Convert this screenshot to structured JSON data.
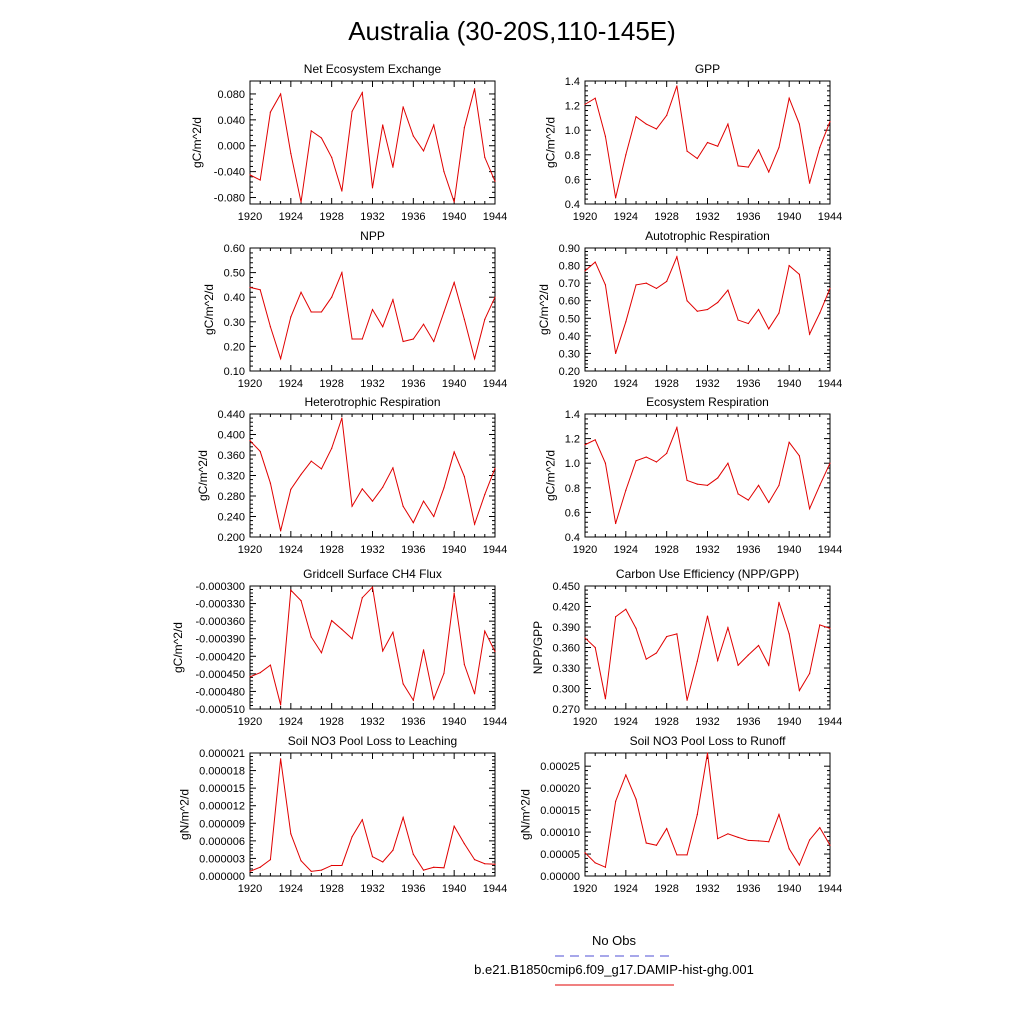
{
  "figure": {
    "title": "Australia (30-20S,110-145E)"
  },
  "legend": {
    "entries": [
      {
        "label": "No Obs",
        "color": "#4f4fd6",
        "style": "dashed"
      },
      {
        "label": "b.e21.B1850cmip6.f09_g17.DAMIP-hist-ghg.001",
        "color": "#e00000",
        "style": "solid"
      }
    ]
  },
  "colors": {
    "series": "#e00000",
    "axis": "#000000"
  },
  "chart_data": [
    {
      "id": "nee",
      "type": "line",
      "title": "Net Ecosystem Exchange",
      "ylabel": "gC/m^2/d",
      "xlim": [
        1920,
        1944
      ],
      "ylim": [
        -0.09,
        0.1
      ],
      "xticks": [
        1920,
        1924,
        1928,
        1932,
        1936,
        1940,
        1944
      ],
      "yticks": [
        -0.08,
        -0.04,
        0.0,
        0.04,
        0.08
      ],
      "yticklabels": [
        "-0.080",
        "-0.040",
        "0.000",
        "0.040",
        "0.080"
      ],
      "x": [
        1920,
        1921,
        1922,
        1923,
        1924,
        1925,
        1926,
        1927,
        1928,
        1929,
        1930,
        1931,
        1932,
        1933,
        1934,
        1935,
        1936,
        1937,
        1938,
        1939,
        1940,
        1941,
        1942,
        1943,
        1944
      ],
      "series": [
        {
          "values": [
            -0.045,
            -0.053,
            0.052,
            0.08,
            -0.012,
            -0.087,
            0.023,
            0.012,
            -0.018,
            -0.07,
            0.053,
            0.082,
            -0.065,
            0.032,
            -0.033,
            0.06,
            0.015,
            -0.008,
            0.032,
            -0.04,
            -0.087,
            0.028,
            0.088,
            -0.018,
            -0.055
          ]
        }
      ]
    },
    {
      "id": "gpp",
      "type": "line",
      "title": "GPP",
      "ylabel": "gC/m^2/d",
      "xlim": [
        1920,
        1944
      ],
      "ylim": [
        0.4,
        1.4
      ],
      "xticks": [
        1920,
        1924,
        1928,
        1932,
        1936,
        1940,
        1944
      ],
      "yticks": [
        0.4,
        0.6,
        0.8,
        1.0,
        1.2,
        1.4
      ],
      "yticklabels": [
        "0.4",
        "0.6",
        "0.8",
        "1.0",
        "1.2",
        "1.4"
      ],
      "x": [
        1920,
        1921,
        1922,
        1923,
        1924,
        1925,
        1926,
        1927,
        1928,
        1929,
        1930,
        1931,
        1932,
        1933,
        1934,
        1935,
        1936,
        1937,
        1938,
        1939,
        1940,
        1941,
        1942,
        1943,
        1944
      ],
      "series": [
        {
          "values": [
            1.21,
            1.26,
            0.95,
            0.45,
            0.8,
            1.11,
            1.05,
            1.01,
            1.12,
            1.36,
            0.83,
            0.77,
            0.9,
            0.87,
            1.05,
            0.71,
            0.7,
            0.84,
            0.66,
            0.86,
            1.26,
            1.05,
            0.57,
            0.86,
            1.07
          ]
        }
      ]
    },
    {
      "id": "npp",
      "type": "line",
      "title": "NPP",
      "ylabel": "gC/m^2/d",
      "xlim": [
        1920,
        1944
      ],
      "ylim": [
        0.1,
        0.6
      ],
      "xticks": [
        1920,
        1924,
        1928,
        1932,
        1936,
        1940,
        1944
      ],
      "yticks": [
        0.1,
        0.2,
        0.3,
        0.4,
        0.5,
        0.6
      ],
      "yticklabels": [
        "0.10",
        "0.20",
        "0.30",
        "0.40",
        "0.50",
        "0.60"
      ],
      "x": [
        1920,
        1921,
        1922,
        1923,
        1924,
        1925,
        1926,
        1927,
        1928,
        1929,
        1930,
        1931,
        1932,
        1933,
        1934,
        1935,
        1936,
        1937,
        1938,
        1939,
        1940,
        1941,
        1942,
        1943,
        1944
      ],
      "series": [
        {
          "values": [
            0.44,
            0.43,
            0.28,
            0.15,
            0.32,
            0.42,
            0.34,
            0.34,
            0.4,
            0.5,
            0.23,
            0.23,
            0.35,
            0.28,
            0.39,
            0.22,
            0.23,
            0.29,
            0.22,
            0.34,
            0.46,
            0.31,
            0.15,
            0.31,
            0.4
          ]
        }
      ]
    },
    {
      "id": "ar",
      "type": "line",
      "title": "Autotrophic Respiration",
      "ylabel": "gC/m^2/d",
      "xlim": [
        1920,
        1944
      ],
      "ylim": [
        0.2,
        0.9
      ],
      "xticks": [
        1920,
        1924,
        1928,
        1932,
        1936,
        1940,
        1944
      ],
      "yticks": [
        0.2,
        0.3,
        0.4,
        0.5,
        0.6,
        0.7,
        0.8,
        0.9
      ],
      "yticklabels": [
        "0.20",
        "0.30",
        "0.40",
        "0.50",
        "0.60",
        "0.70",
        "0.80",
        "0.90"
      ],
      "x": [
        1920,
        1921,
        1922,
        1923,
        1924,
        1925,
        1926,
        1927,
        1928,
        1929,
        1930,
        1931,
        1932,
        1933,
        1934,
        1935,
        1936,
        1937,
        1938,
        1939,
        1940,
        1941,
        1942,
        1943,
        1944
      ],
      "series": [
        {
          "values": [
            0.77,
            0.82,
            0.69,
            0.3,
            0.48,
            0.69,
            0.7,
            0.67,
            0.71,
            0.85,
            0.6,
            0.54,
            0.55,
            0.59,
            0.66,
            0.49,
            0.47,
            0.55,
            0.44,
            0.53,
            0.8,
            0.75,
            0.41,
            0.53,
            0.67
          ]
        }
      ]
    },
    {
      "id": "hr",
      "type": "line",
      "title": "Heterotrophic Respiration",
      "ylabel": "gC/m^2/d",
      "xlim": [
        1920,
        1944
      ],
      "ylim": [
        0.2,
        0.44
      ],
      "xticks": [
        1920,
        1924,
        1928,
        1932,
        1936,
        1940,
        1944
      ],
      "yticks": [
        0.2,
        0.24,
        0.28,
        0.32,
        0.36,
        0.4,
        0.44
      ],
      "yticklabels": [
        "0.200",
        "0.240",
        "0.280",
        "0.320",
        "0.360",
        "0.400",
        "0.440"
      ],
      "x": [
        1920,
        1921,
        1922,
        1923,
        1924,
        1925,
        1926,
        1927,
        1928,
        1929,
        1930,
        1931,
        1932,
        1933,
        1934,
        1935,
        1936,
        1937,
        1938,
        1939,
        1940,
        1941,
        1942,
        1943,
        1944
      ],
      "series": [
        {
          "values": [
            0.388,
            0.367,
            0.305,
            0.212,
            0.293,
            0.322,
            0.348,
            0.333,
            0.373,
            0.432,
            0.26,
            0.294,
            0.27,
            0.297,
            0.335,
            0.26,
            0.228,
            0.27,
            0.24,
            0.296,
            0.366,
            0.318,
            0.225,
            0.283,
            0.334
          ]
        }
      ]
    },
    {
      "id": "er",
      "type": "line",
      "title": "Ecosystem Respiration",
      "ylabel": "gC/m^2/d",
      "xlim": [
        1920,
        1944
      ],
      "ylim": [
        0.4,
        1.4
      ],
      "xticks": [
        1920,
        1924,
        1928,
        1932,
        1936,
        1940,
        1944
      ],
      "yticks": [
        0.4,
        0.6,
        0.8,
        1.0,
        1.2,
        1.4
      ],
      "yticklabels": [
        "0.4",
        "0.6",
        "0.8",
        "1.0",
        "1.2",
        "1.4"
      ],
      "x": [
        1920,
        1921,
        1922,
        1923,
        1924,
        1925,
        1926,
        1927,
        1928,
        1929,
        1930,
        1931,
        1932,
        1933,
        1934,
        1935,
        1936,
        1937,
        1938,
        1939,
        1940,
        1941,
        1942,
        1943,
        1944
      ],
      "series": [
        {
          "values": [
            1.15,
            1.19,
            1.0,
            0.51,
            0.78,
            1.02,
            1.05,
            1.01,
            1.08,
            1.29,
            0.86,
            0.83,
            0.82,
            0.88,
            1.0,
            0.75,
            0.7,
            0.82,
            0.68,
            0.82,
            1.17,
            1.06,
            0.63,
            0.82,
            1.0
          ]
        }
      ]
    },
    {
      "id": "ch4",
      "type": "line",
      "title": "Gridcell Surface CH4 Flux",
      "ylabel": "gC/m^2/d",
      "xlim": [
        1920,
        1944
      ],
      "ylim": [
        -0.00051,
        -0.0003
      ],
      "xticks": [
        1920,
        1924,
        1928,
        1932,
        1936,
        1940,
        1944
      ],
      "yticks": [
        -0.00051,
        -0.00048,
        -0.00045,
        -0.00042,
        -0.00039,
        -0.00036,
        -0.00033,
        -0.0003
      ],
      "yticklabels": [
        "-0.000510",
        "-0.000480",
        "-0.000450",
        "-0.000420",
        "-0.000390",
        "-0.000360",
        "-0.000330",
        "-0.000300"
      ],
      "x": [
        1920,
        1921,
        1922,
        1923,
        1924,
        1925,
        1926,
        1927,
        1928,
        1929,
        1930,
        1931,
        1932,
        1933,
        1934,
        1935,
        1936,
        1937,
        1938,
        1939,
        1940,
        1941,
        1942,
        1943,
        1944
      ],
      "series": [
        {
          "values": [
            -0.000455,
            -0.000448,
            -0.000435,
            -0.000503,
            -0.000307,
            -0.000325,
            -0.000387,
            -0.000414,
            -0.000359,
            -0.000374,
            -0.00039,
            -0.00032,
            -0.000302,
            -0.000411,
            -0.000379,
            -0.000467,
            -0.000495,
            -0.000409,
            -0.000493,
            -0.000449,
            -0.000312,
            -0.000434,
            -0.000484,
            -0.000377,
            -0.000412
          ]
        }
      ]
    },
    {
      "id": "cue",
      "type": "line",
      "title": "Carbon Use Efficiency (NPP/GPP)",
      "ylabel": "NPP/GPP",
      "xlim": [
        1920,
        1944
      ],
      "ylim": [
        0.27,
        0.45
      ],
      "xticks": [
        1920,
        1924,
        1928,
        1932,
        1936,
        1940,
        1944
      ],
      "yticks": [
        0.27,
        0.3,
        0.33,
        0.36,
        0.39,
        0.42,
        0.45
      ],
      "yticklabels": [
        "0.270",
        "0.300",
        "0.330",
        "0.360",
        "0.390",
        "0.420",
        "0.450"
      ],
      "x": [
        1920,
        1921,
        1922,
        1923,
        1924,
        1925,
        1926,
        1927,
        1928,
        1929,
        1930,
        1931,
        1932,
        1933,
        1934,
        1935,
        1936,
        1937,
        1938,
        1939,
        1940,
        1941,
        1942,
        1943,
        1944
      ],
      "series": [
        {
          "values": [
            0.374,
            0.36,
            0.285,
            0.405,
            0.416,
            0.388,
            0.343,
            0.352,
            0.376,
            0.38,
            0.283,
            0.34,
            0.406,
            0.341,
            0.389,
            0.334,
            0.349,
            0.363,
            0.334,
            0.426,
            0.38,
            0.297,
            0.322,
            0.393,
            0.388
          ]
        }
      ]
    },
    {
      "id": "leach",
      "type": "line",
      "title": "Soil NO3 Pool Loss to Leaching",
      "ylabel": "gN/m^2/d",
      "xlim": [
        1920,
        1944
      ],
      "ylim": [
        0,
        2.1e-05
      ],
      "xticks": [
        1920,
        1924,
        1928,
        1932,
        1936,
        1940,
        1944
      ],
      "yticks": [
        0,
        3e-06,
        6e-06,
        9e-06,
        1.2e-05,
        1.5e-05,
        1.8e-05,
        2.1e-05
      ],
      "yticklabels": [
        "0.000000",
        "0.000003",
        "0.000006",
        "0.000009",
        "0.000012",
        "0.000015",
        "0.000018",
        "0.000021"
      ],
      "x": [
        1920,
        1921,
        1922,
        1923,
        1924,
        1925,
        1926,
        1927,
        1928,
        1929,
        1930,
        1931,
        1932,
        1933,
        1934,
        1935,
        1936,
        1937,
        1938,
        1939,
        1940,
        1941,
        1942,
        1943,
        1944
      ],
      "series": [
        {
          "values": [
            8e-07,
            1.5e-06,
            2.8e-06,
            2e-05,
            7.2e-06,
            2.6e-06,
            8e-07,
            1e-06,
            1.8e-06,
            1.8e-06,
            6.7e-06,
            9.6e-06,
            3.3e-06,
            2.4e-06,
            4.4e-06,
            1e-05,
            3.7e-06,
            1e-06,
            1.5e-06,
            1.4e-06,
            8.5e-06,
            5.5e-06,
            2.8e-06,
            2.1e-06,
            2e-06
          ]
        }
      ]
    },
    {
      "id": "runoff",
      "type": "line",
      "title": "Soil NO3 Pool Loss to Runoff",
      "ylabel": "gN/m^2/d",
      "xlim": [
        1920,
        1944
      ],
      "ylim": [
        0,
        0.00028
      ],
      "xticks": [
        1920,
        1924,
        1928,
        1932,
        1936,
        1940,
        1944
      ],
      "yticks": [
        0,
        5e-05,
        0.0001,
        0.00015,
        0.0002,
        0.00025
      ],
      "yticklabels": [
        "0.00000",
        "0.00005",
        "0.00010",
        "0.00015",
        "0.00020",
        "0.00025"
      ],
      "x": [
        1920,
        1921,
        1922,
        1923,
        1924,
        1925,
        1926,
        1927,
        1928,
        1929,
        1930,
        1931,
        1932,
        1933,
        1934,
        1935,
        1936,
        1937,
        1938,
        1939,
        1940,
        1941,
        1942,
        1943,
        1944
      ],
      "series": [
        {
          "values": [
            5.3e-05,
            3e-05,
            2e-05,
            0.00017,
            0.00023,
            0.000175,
            7.5e-05,
            7e-05,
            0.000108,
            4.8e-05,
            4.8e-05,
            0.00014,
            0.00028,
            8.5e-05,
            9.6e-05,
            8.8e-05,
            8.1e-05,
            8e-05,
            7.8e-05,
            0.00014,
            6.2e-05,
            2.5e-05,
            8.2e-05,
            0.00011,
            7e-05
          ]
        }
      ]
    }
  ]
}
